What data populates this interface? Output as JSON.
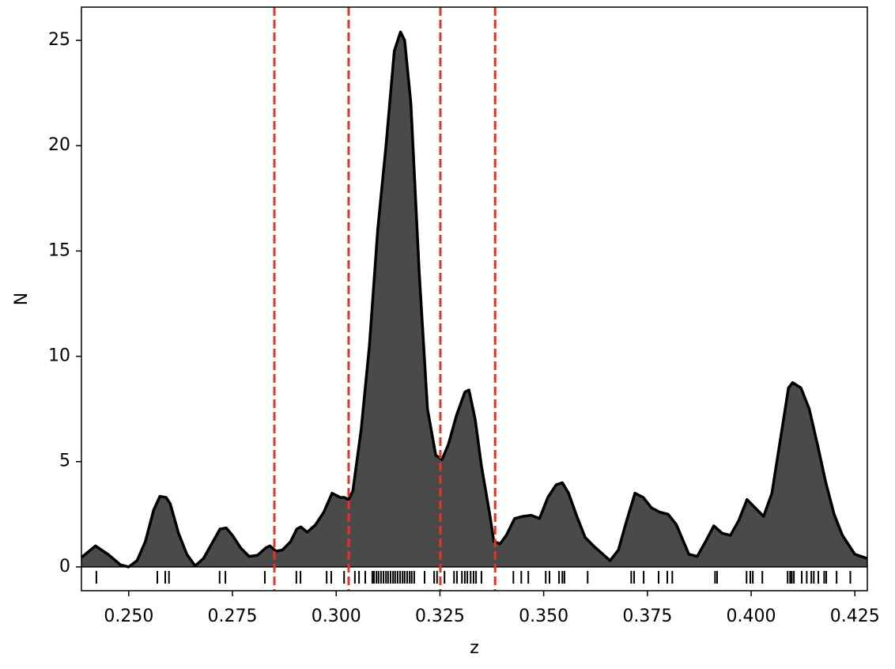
{
  "chart_data": {
    "type": "area",
    "xlabel": "z",
    "ylabel": "N",
    "x": [
      0.2386,
      0.242,
      0.245,
      0.248,
      0.25,
      0.252,
      0.254,
      0.256,
      0.2575,
      0.259,
      0.26,
      0.262,
      0.264,
      0.266,
      0.268,
      0.27,
      0.272,
      0.2735,
      0.275,
      0.277,
      0.279,
      0.281,
      0.283,
      0.284,
      0.2855,
      0.287,
      0.289,
      0.2905,
      0.2915,
      0.293,
      0.295,
      0.297,
      0.299,
      0.301,
      0.302,
      0.303,
      0.304,
      0.306,
      0.308,
      0.31,
      0.312,
      0.314,
      0.3155,
      0.3165,
      0.318,
      0.32,
      0.322,
      0.324,
      0.3255,
      0.327,
      0.329,
      0.331,
      0.332,
      0.3335,
      0.335,
      0.337,
      0.338,
      0.3395,
      0.341,
      0.343,
      0.345,
      0.347,
      0.349,
      0.351,
      0.353,
      0.3545,
      0.356,
      0.358,
      0.36,
      0.362,
      0.366,
      0.368,
      0.37,
      0.372,
      0.374,
      0.376,
      0.378,
      0.38,
      0.382,
      0.385,
      0.387,
      0.389,
      0.391,
      0.393,
      0.395,
      0.397,
      0.399,
      0.401,
      0.403,
      0.405,
      0.407,
      0.409,
      0.41,
      0.412,
      0.414,
      0.416,
      0.418,
      0.42,
      0.422,
      0.425,
      0.428
    ],
    "values": [
      0.45,
      1.0,
      0.6,
      0.1,
      0.0,
      0.3,
      1.2,
      2.7,
      3.35,
      3.3,
      3.0,
      1.6,
      0.6,
      0.05,
      0.4,
      1.1,
      1.8,
      1.85,
      1.5,
      0.9,
      0.5,
      0.55,
      0.9,
      1.0,
      0.75,
      0.8,
      1.2,
      1.8,
      1.9,
      1.65,
      2.0,
      2.6,
      3.5,
      3.3,
      3.3,
      3.2,
      3.6,
      6.5,
      10.5,
      16.0,
      20.0,
      24.5,
      25.4,
      25.0,
      22.0,
      14.0,
      7.5,
      5.3,
      5.1,
      5.8,
      7.2,
      8.3,
      8.4,
      7.0,
      4.8,
      2.5,
      1.2,
      1.1,
      1.5,
      2.3,
      2.4,
      2.45,
      2.3,
      3.3,
      3.9,
      4.0,
      3.5,
      2.4,
      1.4,
      1.0,
      0.3,
      0.8,
      2.2,
      3.5,
      3.3,
      2.8,
      2.6,
      2.5,
      2.0,
      0.6,
      0.5,
      1.2,
      1.95,
      1.6,
      1.5,
      2.2,
      3.2,
      2.8,
      2.4,
      3.5,
      6.0,
      8.5,
      8.75,
      8.5,
      7.5,
      5.8,
      4.0,
      2.5,
      1.5,
      0.6,
      0.4
    ],
    "color": "#4a4a4a",
    "line_color": "#000000",
    "rug": [
      0.2422,
      0.2569,
      0.2588,
      0.2597,
      0.2719,
      0.2733,
      0.2828,
      0.2904,
      0.2914,
      0.2977,
      0.2988,
      0.3019,
      0.3045,
      0.3055,
      0.307,
      0.3087,
      0.3091,
      0.3097,
      0.3102,
      0.3108,
      0.3114,
      0.312,
      0.3125,
      0.3131,
      0.3137,
      0.3142,
      0.3148,
      0.3154,
      0.316,
      0.3165,
      0.3171,
      0.3177,
      0.3182,
      0.3188,
      0.3213,
      0.3236,
      0.3243,
      0.3261,
      0.3284,
      0.3291,
      0.3303,
      0.331,
      0.3316,
      0.3324,
      0.3331,
      0.3337,
      0.335,
      0.3427,
      0.3446,
      0.3463,
      0.3505,
      0.3514,
      0.3537,
      0.3545,
      0.355,
      0.3606,
      0.3711,
      0.3718,
      0.3741,
      0.3777,
      0.3798,
      0.381,
      0.3913,
      0.3918,
      0.3989,
      0.3998,
      0.4004,
      0.4027,
      0.4088,
      0.4094,
      0.4098,
      0.4103,
      0.4122,
      0.4134,
      0.4145,
      0.4151,
      0.4162,
      0.4176,
      0.4181,
      0.4206,
      0.4239
    ],
    "vlines": [
      0.2851,
      0.303,
      0.3251,
      0.3383
    ],
    "vline_color": "#e8312a",
    "xlim": [
      0.2386,
      0.428
    ],
    "ylim": [
      -1.13,
      26.58
    ],
    "xticks": [
      {
        "value": 0.25,
        "label": "0.250"
      },
      {
        "value": 0.275,
        "label": "0.275"
      },
      {
        "value": 0.3,
        "label": "0.300"
      },
      {
        "value": 0.325,
        "label": "0.325"
      },
      {
        "value": 0.35,
        "label": "0.350"
      },
      {
        "value": 0.375,
        "label": "0.375"
      },
      {
        "value": 0.4,
        "label": "0.400"
      },
      {
        "value": 0.425,
        "label": "0.425"
      }
    ],
    "yticks": [
      0,
      5,
      10,
      15,
      20,
      25
    ]
  }
}
